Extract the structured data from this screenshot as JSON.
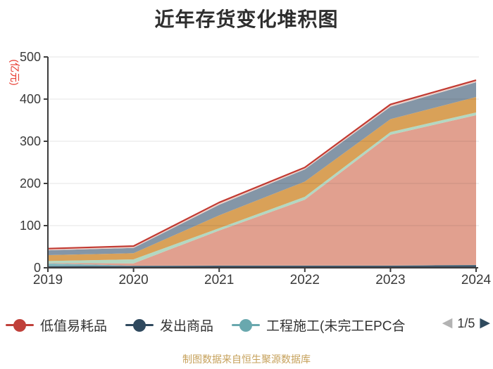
{
  "title": "近年存货变化堆积图",
  "footer": "制图数据来自恒生聚源数据库",
  "legend": {
    "items": [
      {
        "label": "低值易耗品",
        "color": "#c0403a"
      },
      {
        "label": "发出商品",
        "color": "#2f495e"
      },
      {
        "label": "工程施工(未完工EPC合",
        "color": "#69a8ae"
      }
    ],
    "pagination": {
      "current": 1,
      "total": 5,
      "text": "1/5",
      "prev_icon": "◀",
      "next_icon": "▶"
    }
  },
  "chart_data": {
    "type": "area",
    "stacked": true,
    "title": "近年存货变化堆积图",
    "ylabel": "(亿元)",
    "ylabel_color": "#e6352a",
    "ylim": [
      0,
      500
    ],
    "yticks": [
      0,
      100,
      200,
      300,
      400,
      500
    ],
    "x": [
      2019,
      2020,
      2021,
      2022,
      2023,
      2024
    ],
    "grid": true,
    "legend_position": "bottom",
    "series": [
      {
        "id": "shipped-goods-band",
        "name": "发出商品",
        "fill": "#415669",
        "values": [
          4,
          4.5,
          5,
          5,
          5,
          6.5
        ]
      },
      {
        "id": "construction-band",
        "name": "工程施工(未完工EPC合",
        "fill": "#84bac0",
        "values": [
          6.5,
          0.5,
          0.4,
          0.4,
          0.4,
          0.4
        ]
      },
      {
        "id": "salmon-band",
        "name": "",
        "fill": "#e1a08f",
        "values": [
          0.5,
          5.5,
          83,
          156,
          310,
          355
        ]
      },
      {
        "id": "mint-band",
        "name": "",
        "fill": "#b3d8c2",
        "values": [
          5,
          9.5,
          5.5,
          7,
          6.5,
          6.5
        ]
      },
      {
        "id": "orange-band",
        "name": "",
        "fill": "#d9a158",
        "values": [
          14,
          14.5,
          30.5,
          36,
          30.5,
          36.5
        ]
      },
      {
        "id": "slate-band",
        "name": "",
        "fill": "#8496a7",
        "values": [
          11.5,
          12.5,
          25,
          29,
          29.5,
          35
        ]
      },
      {
        "id": "low-value-consumables-band",
        "name": "低值易耗品",
        "fill": "#ecd0c9",
        "stroke": "#c23b33",
        "values": [
          4,
          4.5,
          5.5,
          4.5,
          5.5,
          5
        ]
      }
    ],
    "totals": [
      45.5,
      51.5,
      154.9,
      237.9,
      387.4,
      444.9
    ],
    "axis_color": "#3d3d3d",
    "grid_color": "rgba(0,0,0,0.10)"
  }
}
